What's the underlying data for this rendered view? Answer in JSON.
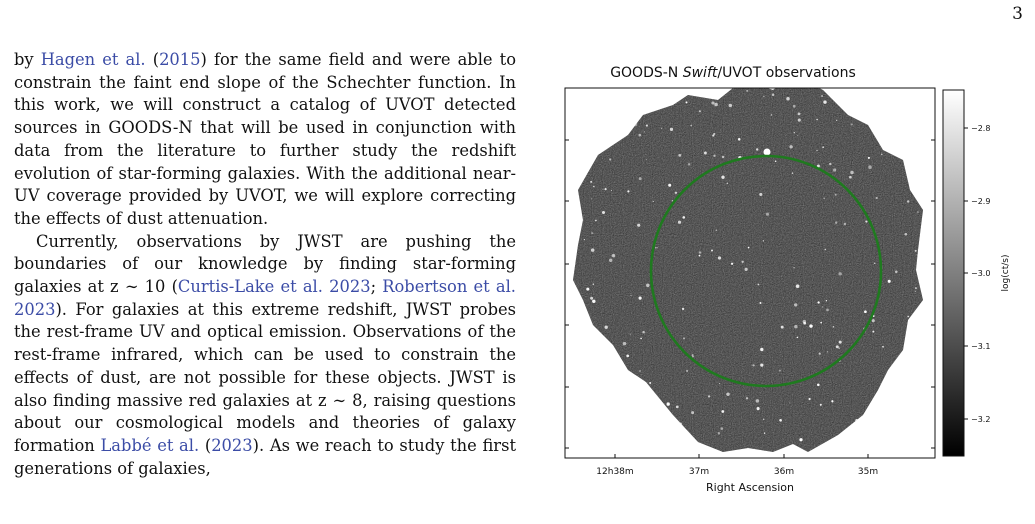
{
  "page_number": "3",
  "text": {
    "p1": [
      {
        "t": "by "
      },
      {
        "t": "Hagen et al.",
        "cite": true
      },
      {
        "t": " ("
      },
      {
        "t": "2015",
        "cite": true
      },
      {
        "t": ") for the same field and were able to constrain the faint end slope of the Schechter function. In this work, we will construct a catalog of UVOT detected sources in GOODS-N that will be used in conjunction with data from the literature to further study the redshift evolution of star-forming galaxies. With the additional near-UV coverage provided by UVOT, we will explore correcting the effects of dust attenuation."
      }
    ],
    "p2": [
      {
        "t": "Currently, observations by JWST are pushing the boundaries of our knowledge by finding star-forming galaxies at z ∼ 10 ("
      },
      {
        "t": "Curtis-Lake et al. 2023",
        "cite": true
      },
      {
        "t": "; "
      },
      {
        "t": "Robertson et al. 2023",
        "cite": true
      },
      {
        "t": "). For galaxies at this extreme redshift, JWST probes the rest-frame UV and optical emission. Observations of the rest-frame infrared, which can be used to constrain the effects of dust, are not possible for these objects. JWST is also finding massive red galaxies at z ∼ 8, raising questions about our cosmological models and theories of galaxy formation "
      },
      {
        "t": "Labbé et al.",
        "cite": true
      },
      {
        "t": " ("
      },
      {
        "t": "2023",
        "cite": true
      },
      {
        "t": "). As we reach to study the first generations of galaxies,"
      }
    ]
  },
  "figure": {
    "title_prefix": "GOODS-N ",
    "title_italic": "Swift",
    "title_suffix": "/UVOT observations",
    "xlabel": "Right Ascension",
    "x_ticks": [
      "12h38m",
      "37m",
      "36m",
      "35m"
    ],
    "colorbar_label": "log(ct/s)",
    "colorbar_ticks": [
      "−2.8",
      "−2.9",
      "−3.0",
      "−3.1",
      "−3.2"
    ],
    "colormap": "gray",
    "circle_color": "#1f7a1f"
  }
}
